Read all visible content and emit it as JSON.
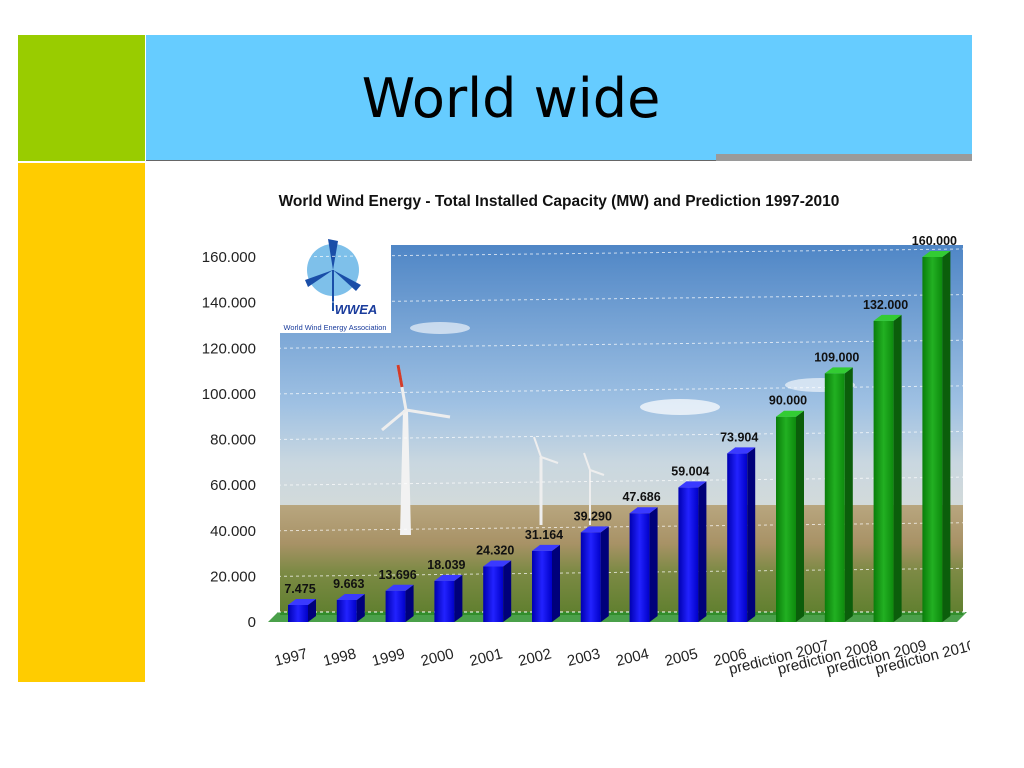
{
  "slide": {
    "title": "World wide",
    "colors": {
      "green": "#99cc00",
      "yellow": "#ffcc00",
      "title_band": "#66ccff"
    }
  },
  "logo": {
    "name": "WWEA",
    "caption": "World Wind Energy Association"
  },
  "chart_data": {
    "type": "bar",
    "title": "World Wind Energy - Total Installed Capacity (MW) and Prediction 1997-2010",
    "xlabel": "",
    "ylabel": "",
    "ylim": [
      0,
      160000
    ],
    "yticks": [
      "0",
      "20.000",
      "40.000",
      "60.000",
      "80.000",
      "100.000",
      "120.000",
      "140.000",
      "160.000"
    ],
    "categories": [
      "1997",
      "1998",
      "1999",
      "2000",
      "2001",
      "2002",
      "2003",
      "2004",
      "2005",
      "2006",
      "prediction 2007",
      "prediction 2008",
      "prediction 2009",
      "prediction 2010"
    ],
    "values": [
      7475,
      9663,
      13696,
      18039,
      24320,
      31164,
      39290,
      47686,
      59004,
      73904,
      90000,
      109000,
      132000,
      160000
    ],
    "value_labels": [
      "7.475",
      "9.663",
      "13.696",
      "18.039",
      "24.320",
      "31.164",
      "39.290",
      "47.686",
      "59.004",
      "73.904",
      "90.000",
      "109.000",
      "132.000",
      "160.000"
    ],
    "bar_colors": {
      "actual": "#1a1aee",
      "prediction": "#1fa01f"
    },
    "grid": true,
    "background": "wind turbines photograph"
  }
}
